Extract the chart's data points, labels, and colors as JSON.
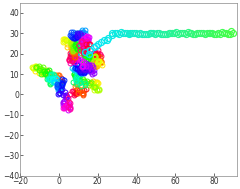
{
  "n1": 600,
  "n2": 75,
  "xlim": [
    -20,
    92
  ],
  "ylim": [
    -40,
    45
  ],
  "figsize": [
    2.4,
    1.89
  ],
  "dpi": 100,
  "xticks": [
    -20,
    0,
    20,
    40,
    60,
    80
  ],
  "yticks": [
    -40,
    -30,
    -20,
    -10,
    0,
    10,
    20,
    30,
    40
  ],
  "marker_size": 3.5,
  "linewidth": 0.7,
  "background": "#ffffff",
  "color_cycles": 4,
  "cluster_xlim": [
    -18,
    22
  ],
  "cluster_ylim": [
    -34,
    32
  ],
  "step_scale": 2.5
}
